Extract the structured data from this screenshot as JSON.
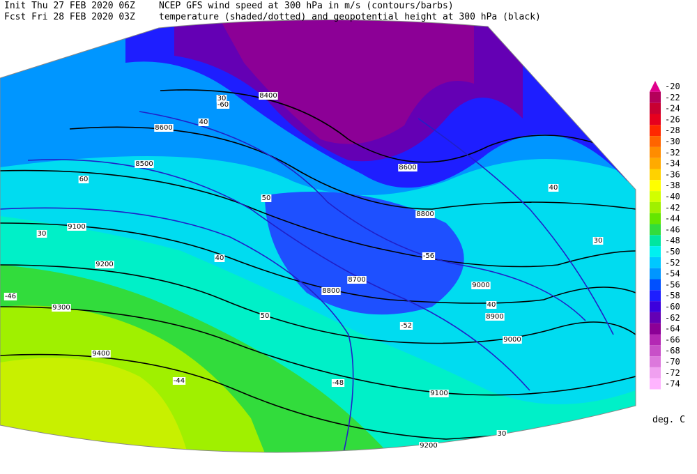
{
  "header": {
    "init": "Init  Thu 27 FEB 2020 06Z",
    "fcst": "Fcst Fri 28 FEB 2020 03Z",
    "title1": "NCEP GFS wind speed at 300 hPa in m/s (contours/barbs)",
    "title2": "temperature (shaded/dotted) and geopotential height at 300 hPa (black)"
  },
  "legend": {
    "ticks": [
      -20,
      -22,
      -24,
      -26,
      -28,
      -30,
      -32,
      -34,
      -36,
      -38,
      -40,
      -42,
      -44,
      -46,
      -48,
      -50,
      -52,
      -54,
      -56,
      -58,
      -60,
      -62,
      -64,
      -66,
      -68,
      -70,
      -72,
      -74
    ],
    "colors": [
      "#e0008c",
      "#b4005a",
      "#c80032",
      "#e6001e",
      "#ff2800",
      "#ff6400",
      "#ff8c00",
      "#ffaa00",
      "#ffd200",
      "#ffff00",
      "#d2ff00",
      "#a0f000",
      "#64e600",
      "#32dc3c",
      "#00e6a0",
      "#00f0f0",
      "#00c8ff",
      "#0096ff",
      "#0050ff",
      "#1e1eff",
      "#3c00dc",
      "#6400b4",
      "#8c0096",
      "#b428b4",
      "#c850c8",
      "#dc78dc",
      "#f0a0f0",
      "#ffb4ff"
    ],
    "unit": "deg. C"
  },
  "contour_labels": [
    "8400",
    "8600",
    "8800",
    "9000",
    "9100",
    "9200",
    "9300",
    "9400",
    "8500",
    "8600",
    "8700",
    "8800",
    "8900",
    "9000",
    "9100",
    "9200",
    "30",
    "40",
    "50",
    "60",
    "30",
    "40",
    "50",
    "40",
    "30",
    "40",
    "30",
    "-60",
    "-56",
    "-52",
    "-48",
    "-46",
    "-44"
  ]
}
